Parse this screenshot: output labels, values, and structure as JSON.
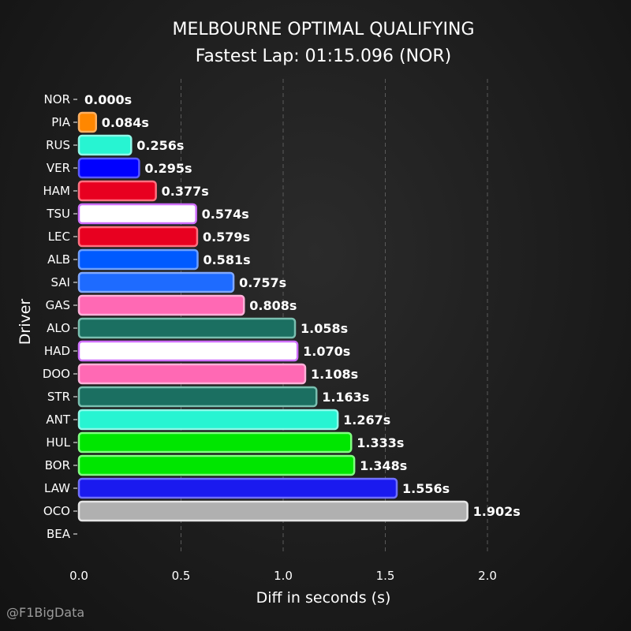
{
  "chart_data": {
    "type": "bar",
    "orientation": "horizontal",
    "title": "MELBOURNE OPTIMAL QUALIFYING",
    "subtitle": "Fastest Lap: 01:15.096 (NOR)",
    "xlabel": "Diff in seconds (s)",
    "ylabel": "Driver",
    "xlim": [
      0,
      2.2
    ],
    "xticks": [
      "0.0",
      "0.5",
      "1.0",
      "1.5",
      "2.0"
    ],
    "grid": "vertical dashed",
    "watermark": "@F1BigData",
    "categories": [
      "NOR",
      "PIA",
      "RUS",
      "VER",
      "HAM",
      "TSU",
      "LEC",
      "ALB",
      "SAI",
      "GAS",
      "ALO",
      "HAD",
      "DOO",
      "STR",
      "ANT",
      "HUL",
      "BOR",
      "LAW",
      "OCO",
      "BEA"
    ],
    "values": [
      0.0,
      0.084,
      0.256,
      0.295,
      0.377,
      0.574,
      0.579,
      0.581,
      0.757,
      0.808,
      1.058,
      1.07,
      1.108,
      1.163,
      1.267,
      1.333,
      1.348,
      1.556,
      1.902,
      null
    ],
    "value_labels": [
      "0.000s",
      "0.084s",
      "0.256s",
      "0.295s",
      "0.377s",
      "0.574s",
      "0.579s",
      "0.581s",
      "0.757s",
      "0.808s",
      "1.058s",
      "1.070s",
      "1.108s",
      "1.163s",
      "1.267s",
      "1.333s",
      "1.348s",
      "1.556s",
      "1.902s",
      ""
    ],
    "bar_colors": [
      "#FF8700",
      "#FF8700",
      "#27F4D2",
      "#0000FF",
      "#E80020",
      "#FFFFFF",
      "#E80020",
      "#005AFF",
      "#1E6BFF",
      "#FF69B4",
      "#1B6F61",
      "#FFFFFF",
      "#FF69B4",
      "#1B6F61",
      "#27F4D2",
      "#00E600",
      "#00E600",
      "#1A1AEF",
      "#B0B0B0",
      "#B6BABD"
    ],
    "bar_edge_colors": [
      "#FFB060",
      "#FFB060",
      "#8FF8E8",
      "#5A5AFF",
      "#FF7080",
      "#D070FF",
      "#FF7080",
      "#6FA0FF",
      "#80A8FF",
      "#FFB0D8",
      "#7ABFB0",
      "#D070FF",
      "#FFB0D8",
      "#7ABFB0",
      "#8FF8E8",
      "#80FF80",
      "#80FF80",
      "#7070FF",
      "#E5E5E5",
      "#E5E5E5"
    ]
  }
}
